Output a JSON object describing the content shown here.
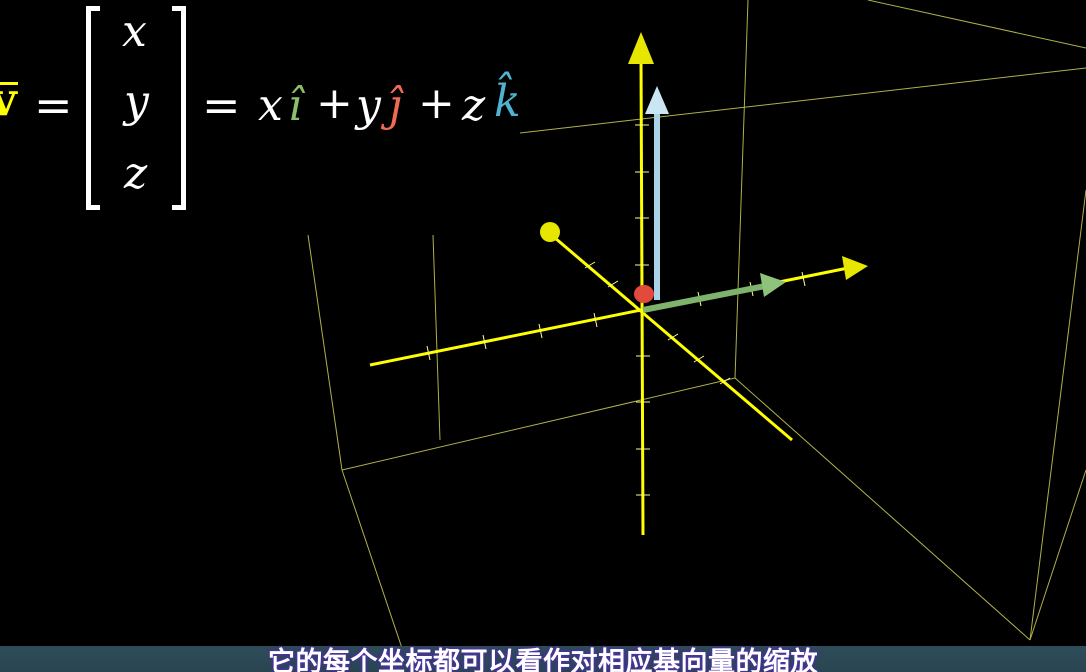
{
  "equation": {
    "lhs": "v",
    "equals_1": "=",
    "matrix": [
      "x",
      "y",
      "z"
    ],
    "equals_2": "=",
    "terms": [
      {
        "coef": "x",
        "basis": "ı̂",
        "color": "#8cbf6a"
      },
      {
        "op": "+"
      },
      {
        "coef": "y",
        "basis": "ȷ̂",
        "color": "#f06a55"
      },
      {
        "op": "+"
      },
      {
        "coef": "z",
        "basis": "k̂",
        "color": "#4fb3cf"
      }
    ],
    "lhs_color": "#ffff00"
  },
  "colors": {
    "axis": "#ffff00",
    "box": "#cccc55",
    "i_hat": "#7fb36b",
    "j_hat": "#e24a3b",
    "k_hat": "#a8d4e6"
  },
  "subtitle": "它的每个坐标都可以看作对相应基向量的缩放"
}
